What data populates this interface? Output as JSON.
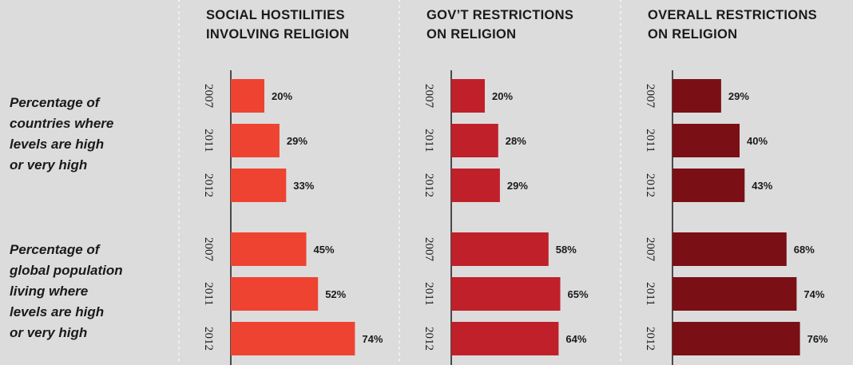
{
  "chart_data": [
    {
      "type": "bar",
      "orientation": "horizontal",
      "title": "SOCIAL HOSTILITIES INVOLVING RELIGION",
      "title_lines": [
        "SOCIAL HOSTILITIES",
        "INVOLVING RELIGION"
      ],
      "color": "#ef4332",
      "groups": [
        {
          "label": "Percentage of countries where levels are high or very high",
          "categories": [
            "2007",
            "2011",
            "2012"
          ],
          "values": [
            20,
            29,
            33
          ]
        },
        {
          "label": "Percentage of global population living where levels are high or very high",
          "categories": [
            "2007",
            "2011",
            "2012"
          ],
          "values": [
            45,
            52,
            74
          ]
        }
      ],
      "value_suffix": "%",
      "xlim": [
        0,
        100
      ]
    },
    {
      "type": "bar",
      "orientation": "horizontal",
      "title": "GOV’T RESTRICTIONS ON RELIGION",
      "title_lines": [
        "GOV’T RESTRICTIONS",
        "ON RELIGION"
      ],
      "color": "#c0202a",
      "groups": [
        {
          "label": "Percentage of countries where levels are high or very high",
          "categories": [
            "2007",
            "2011",
            "2012"
          ],
          "values": [
            20,
            28,
            29
          ]
        },
        {
          "label": "Percentage of global population living where levels are high or very high",
          "categories": [
            "2007",
            "2011",
            "2012"
          ],
          "values": [
            58,
            65,
            64
          ]
        }
      ],
      "value_suffix": "%",
      "xlim": [
        0,
        100
      ]
    },
    {
      "type": "bar",
      "orientation": "horizontal",
      "title": "OVERALL RESTRICTIONS ON RELIGION",
      "title_lines": [
        "OVERALL RESTRICTIONS",
        "ON RELIGION"
      ],
      "color": "#7a1015",
      "groups": [
        {
          "label": "Percentage of countries where levels are high or very high",
          "categories": [
            "2007",
            "2011",
            "2012"
          ],
          "values": [
            29,
            40,
            43
          ]
        },
        {
          "label": "Percentage of global population living where levels are high or very high",
          "categories": [
            "2007",
            "2011",
            "2012"
          ],
          "values": [
            68,
            74,
            76
          ]
        }
      ],
      "value_suffix": "%",
      "xlim": [
        0,
        100
      ]
    }
  ],
  "row_labels": [
    [
      "Percentage of",
      "countries where",
      "levels are high",
      "or very high"
    ],
    [
      "Percentage of",
      "global population",
      "living where",
      "levels are high",
      "or very high"
    ]
  ],
  "colors": {
    "background": "#dcdcdc",
    "axis": "#1a1a1a",
    "divider": "#f2f2f2"
  }
}
